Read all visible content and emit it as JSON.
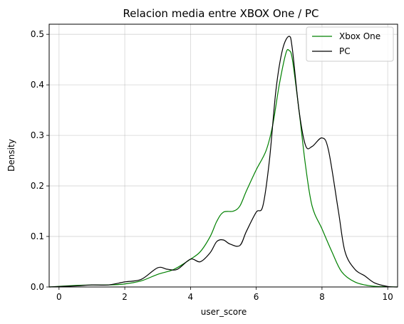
{
  "chart_data": {
    "type": "line",
    "title": "Relacion media entre XBOX One / PC",
    "xlabel": "user_score",
    "ylabel": "Density",
    "xlim": [
      -0.3,
      10.3
    ],
    "ylim": [
      0,
      0.52
    ],
    "xticks": [
      0,
      2,
      4,
      6,
      8,
      10
    ],
    "yticks": [
      0.0,
      0.1,
      0.2,
      0.3,
      0.4,
      0.5
    ],
    "yticklabels": [
      "0.0",
      "0.1",
      "0.2",
      "0.3",
      "0.4",
      "0.5"
    ],
    "grid": true,
    "legend_position": "top-right",
    "series": [
      {
        "name": "Xbox One",
        "color": "#008000",
        "x": [
          -0.3,
          0.5,
          1.0,
          1.5,
          2.0,
          2.5,
          3.0,
          3.5,
          4.0,
          4.3,
          4.6,
          4.8,
          5.0,
          5.3,
          5.5,
          5.7,
          6.0,
          6.3,
          6.5,
          6.7,
          6.9,
          7.0,
          7.1,
          7.3,
          7.5,
          7.7,
          8.0,
          8.3,
          8.6,
          9.0,
          9.5,
          10.0,
          10.3
        ],
        "y": [
          0.0,
          0.003,
          0.004,
          0.004,
          0.006,
          0.012,
          0.025,
          0.035,
          0.055,
          0.07,
          0.1,
          0.13,
          0.148,
          0.15,
          0.16,
          0.19,
          0.232,
          0.27,
          0.32,
          0.4,
          0.462,
          0.468,
          0.45,
          0.35,
          0.24,
          0.16,
          0.115,
          0.07,
          0.03,
          0.01,
          0.002,
          0.0005,
          0.0
        ]
      },
      {
        "name": "PC",
        "color": "#000000",
        "x": [
          -0.3,
          0.5,
          1.0,
          1.5,
          2.0,
          2.5,
          3.0,
          3.3,
          3.6,
          4.0,
          4.3,
          4.6,
          4.8,
          5.0,
          5.2,
          5.5,
          5.7,
          6.0,
          6.2,
          6.4,
          6.6,
          6.8,
          7.0,
          7.1,
          7.3,
          7.5,
          7.7,
          8.0,
          8.2,
          8.5,
          8.7,
          9.0,
          9.3,
          9.6,
          10.0,
          10.3
        ],
        "y": [
          0.0,
          0.002,
          0.004,
          0.004,
          0.01,
          0.015,
          0.038,
          0.035,
          0.035,
          0.055,
          0.05,
          0.068,
          0.09,
          0.093,
          0.085,
          0.082,
          0.11,
          0.148,
          0.16,
          0.25,
          0.39,
          0.47,
          0.496,
          0.47,
          0.35,
          0.28,
          0.278,
          0.295,
          0.27,
          0.15,
          0.07,
          0.035,
          0.022,
          0.008,
          0.001,
          0.0
        ]
      }
    ]
  }
}
